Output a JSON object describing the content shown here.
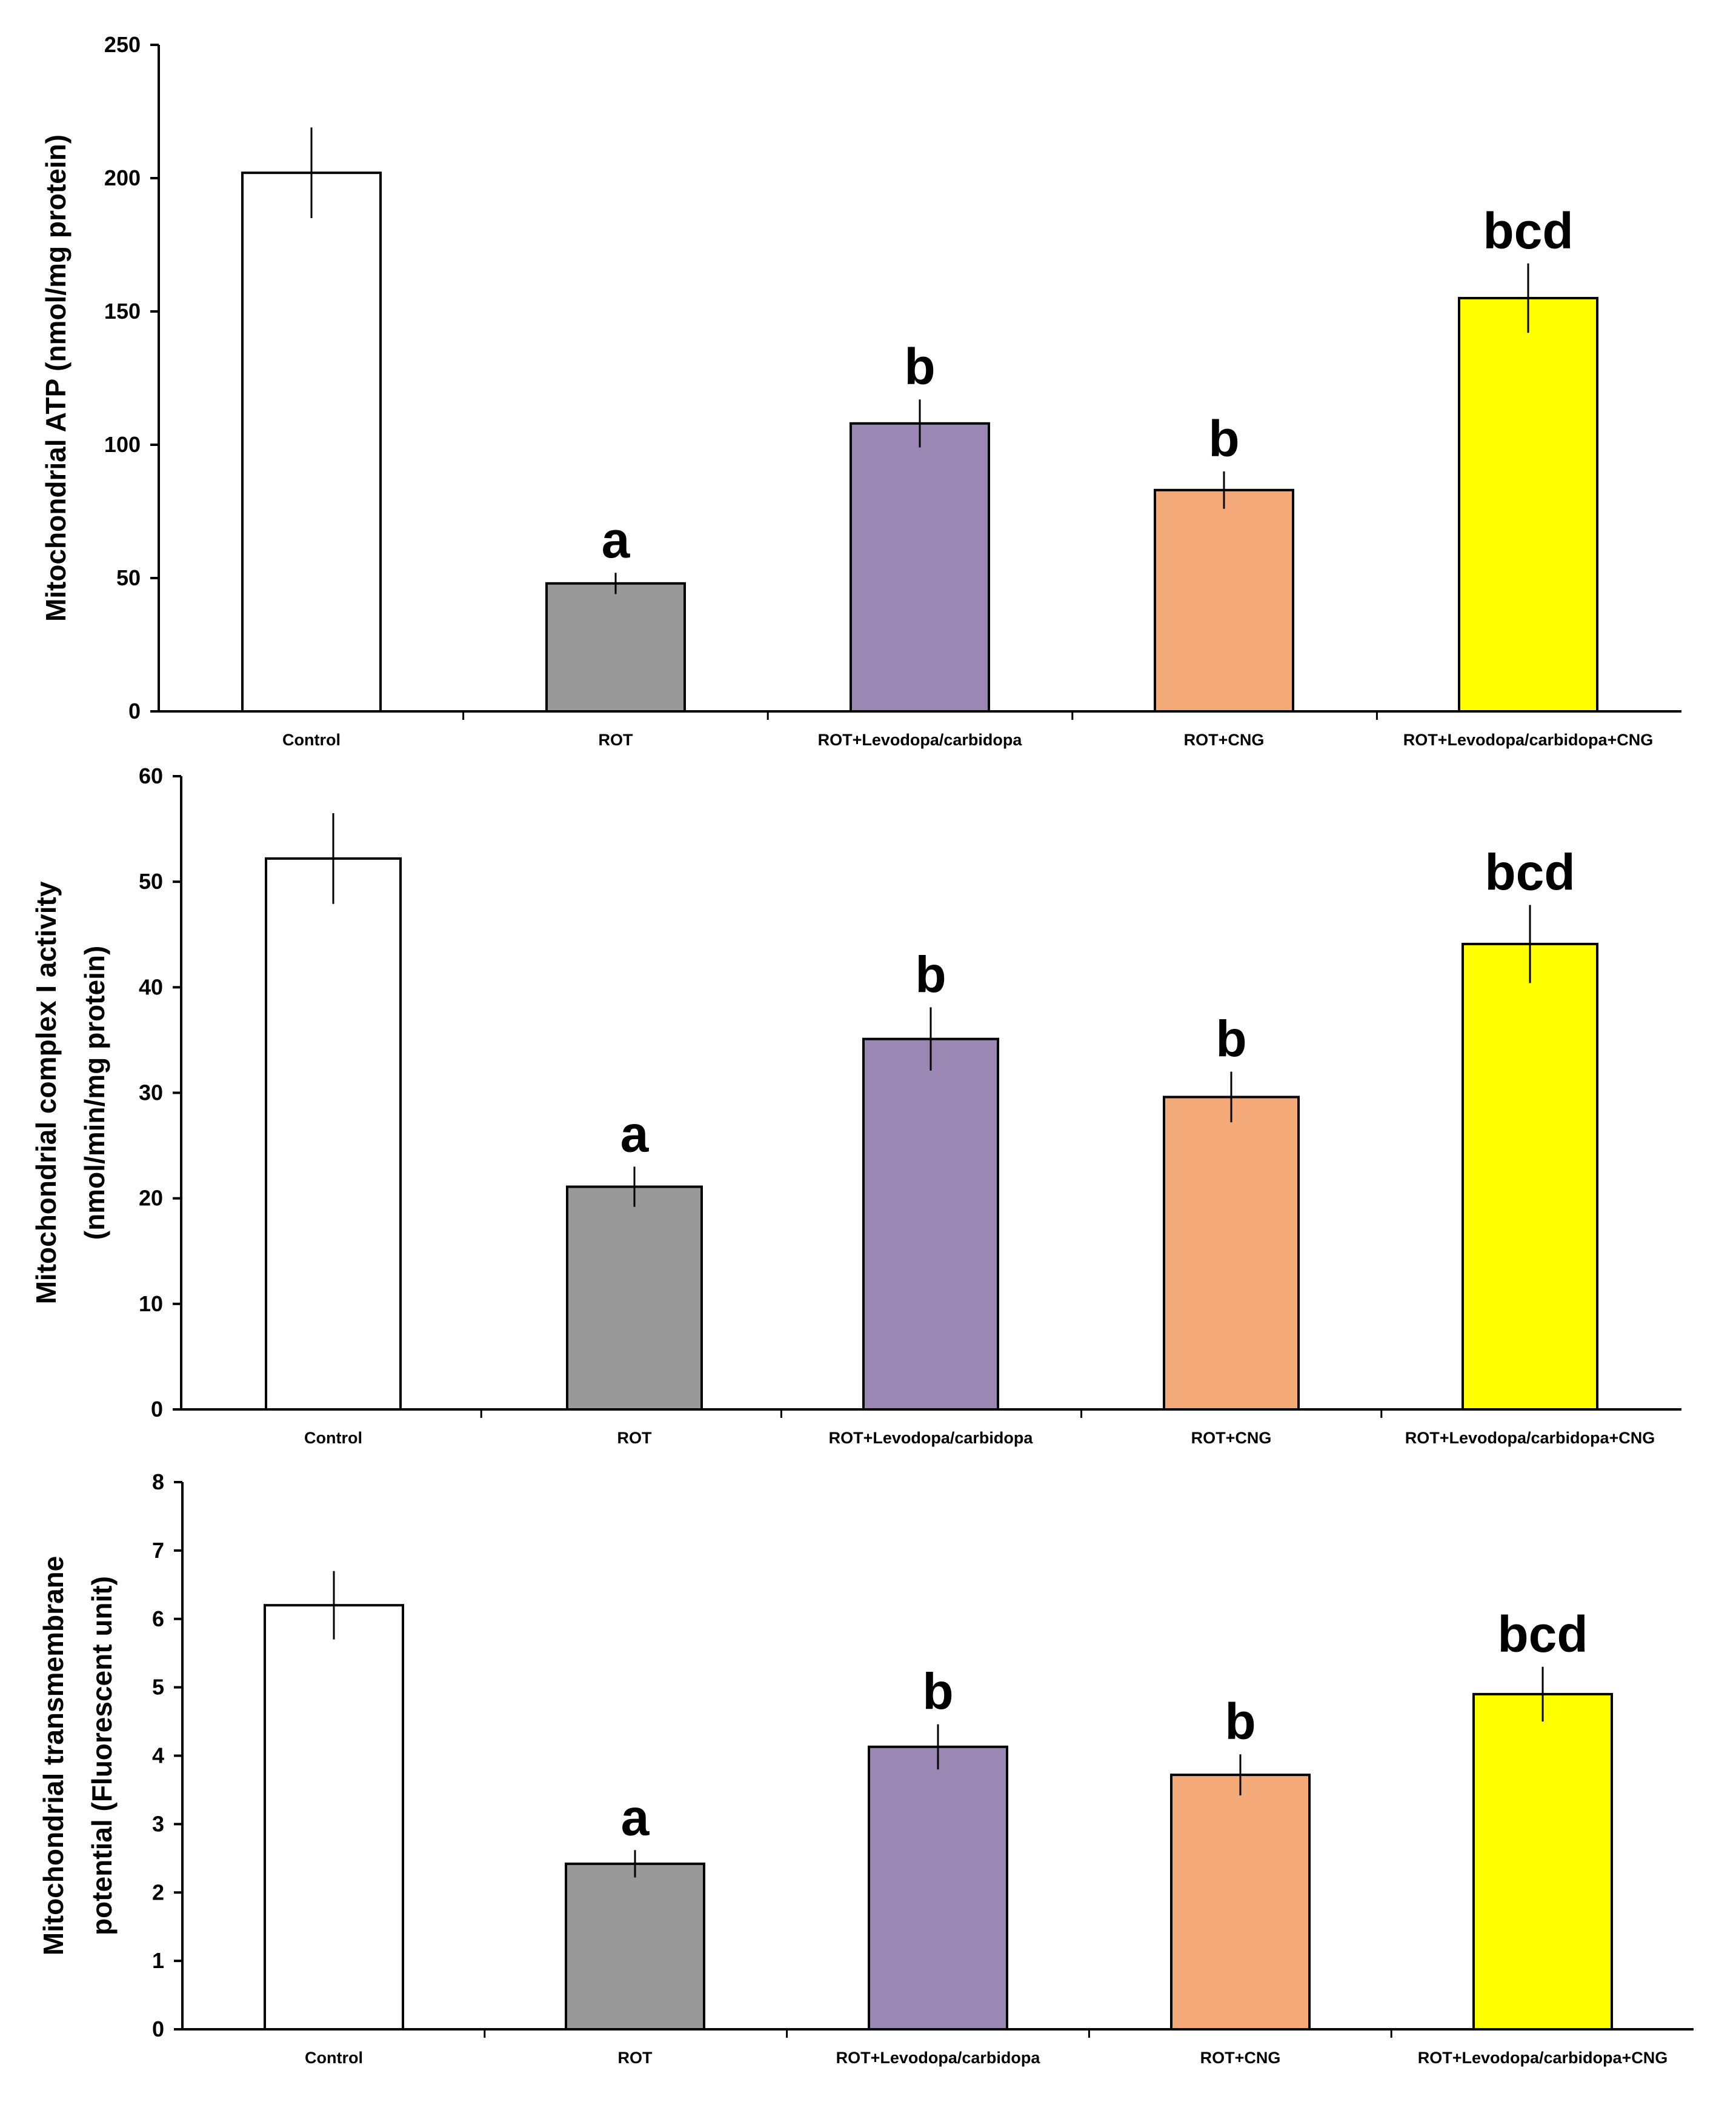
{
  "colors": {
    "Control": "#ffffff",
    "ROT": "#999999",
    "ROT+Levodopa/carbidopa": "#9a87b4",
    "ROT+CNG": "#f4aa78",
    "ROT+Levodopa/carbidopa+CNG": "#ffff00",
    "axis": "#000000",
    "bar_outline": "#000000"
  },
  "chart_data": [
    {
      "type": "bar",
      "title": "",
      "xlabel": "",
      "ylabel_lines": [
        "Mitochondrial ATP (nmol/mg protein)"
      ],
      "ylim": [
        0,
        250
      ],
      "yticks": [
        0,
        50,
        100,
        150,
        200,
        250
      ],
      "categories": [
        "Control",
        "ROT",
        "ROT+Levodopa/carbidopa",
        "ROT+CNG",
        "ROT+Levodopa/carbidopa+CNG"
      ],
      "values": [
        202,
        48,
        108,
        83,
        155
      ],
      "errors": [
        17,
        4,
        9,
        7,
        13
      ],
      "significance": [
        "",
        "a",
        "b",
        "b",
        "bcd"
      ]
    },
    {
      "type": "bar",
      "title": "",
      "xlabel": "",
      "ylabel_lines": [
        "Mitochondrial complex I activity",
        "(nmol/min/mg protein)"
      ],
      "ylim": [
        0,
        60
      ],
      "yticks": [
        0,
        10,
        20,
        30,
        40,
        50,
        60
      ],
      "categories": [
        "Control",
        "ROT",
        "ROT+Levodopa/carbidopa",
        "ROT+CNG",
        "ROT+Levodopa/carbidopa+CNG"
      ],
      "values": [
        52.2,
        21.1,
        35.1,
        29.6,
        44.1
      ],
      "errors": [
        4.3,
        1.9,
        3.0,
        2.4,
        3.7
      ],
      "significance": [
        "",
        "a",
        "b",
        "b",
        "bcd"
      ]
    },
    {
      "type": "bar",
      "title": "",
      "xlabel": "",
      "ylabel_lines": [
        "Mitochondrial transmembrane",
        "potential (Fluorescent unit)"
      ],
      "ylim": [
        0,
        8
      ],
      "yticks": [
        0,
        1,
        2,
        3,
        4,
        5,
        6,
        7,
        8
      ],
      "categories": [
        "Control",
        "ROT",
        "ROT+Levodopa/carbidopa",
        "ROT+CNG",
        "ROT+Levodopa/carbidopa+CNG"
      ],
      "values": [
        6.2,
        2.42,
        4.13,
        3.72,
        4.9
      ],
      "errors": [
        0.5,
        0.2,
        0.33,
        0.3,
        0.4
      ],
      "significance": [
        "",
        "a",
        "b",
        "b",
        "bcd"
      ]
    }
  ]
}
